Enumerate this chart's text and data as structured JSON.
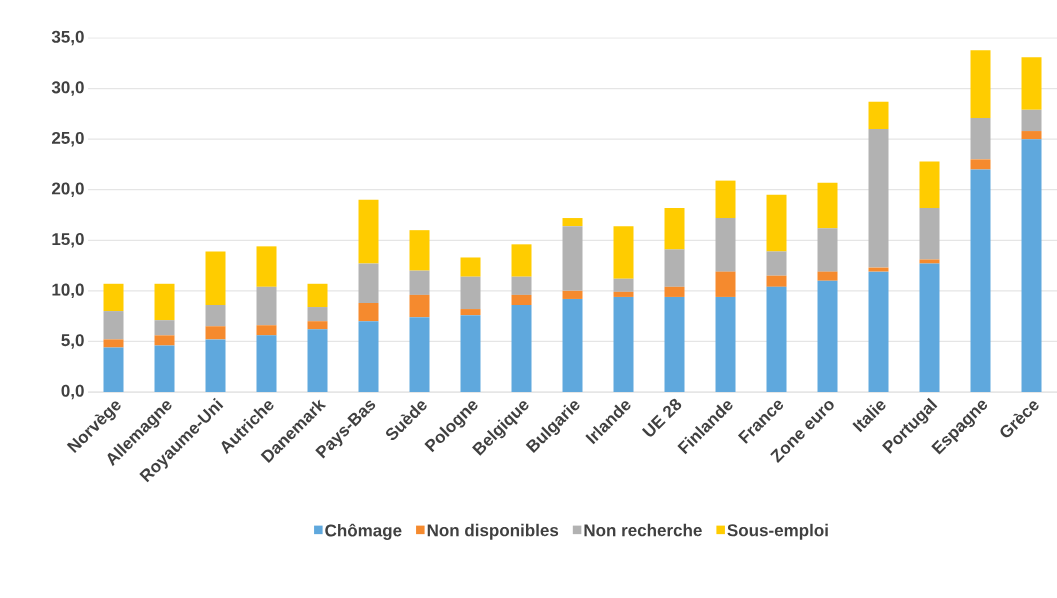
{
  "chart_data": {
    "type": "bar",
    "stacked": true,
    "categories": [
      "Norvège",
      "Allemagne",
      "Royaume-Uni",
      "Autriche",
      "Danemark",
      "Pays-Bas",
      "Suède",
      "Pologne",
      "Belgique",
      "Bulgarie",
      "Irlande",
      "UE 28",
      "Finlande",
      "France",
      "Zone euro",
      "Italie",
      "Portugal",
      "Espagne",
      "Grèce"
    ],
    "series": [
      {
        "name": "Chômage",
        "color": "#5fa8dd",
        "values": [
          4.4,
          4.6,
          5.2,
          5.6,
          6.2,
          7.0,
          7.4,
          7.6,
          8.6,
          9.2,
          9.4,
          9.4,
          9.4,
          10.4,
          11.0,
          11.9,
          12.7,
          22.0,
          25.0
        ]
      },
      {
        "name": "Non disponibles",
        "color": "#f58a2e",
        "values": [
          0.8,
          1.0,
          1.3,
          1.0,
          0.8,
          1.8,
          2.2,
          0.6,
          1.0,
          0.8,
          0.5,
          1.0,
          2.5,
          1.1,
          0.9,
          0.4,
          0.4,
          1.0,
          0.8
        ]
      },
      {
        "name": "Non recherche",
        "color": "#b2b2b2",
        "values": [
          2.8,
          1.5,
          2.1,
          3.8,
          1.4,
          3.9,
          2.4,
          3.2,
          1.8,
          6.4,
          1.3,
          3.7,
          5.3,
          2.4,
          4.3,
          13.7,
          5.1,
          4.1,
          2.1
        ]
      },
      {
        "name": "Sous-emploi",
        "color": "#ffcc00",
        "values": [
          2.7,
          3.6,
          5.3,
          4.0,
          2.3,
          6.3,
          4.0,
          1.9,
          3.2,
          0.8,
          5.2,
          4.1,
          3.7,
          5.6,
          4.5,
          2.7,
          4.6,
          6.7,
          5.2
        ]
      }
    ],
    "ylim": [
      0,
      35
    ],
    "yticks": [
      {
        "value": 0,
        "label": "0,0"
      },
      {
        "value": 5,
        "label": "5,0"
      },
      {
        "value": 10,
        "label": "10,0"
      },
      {
        "value": 15,
        "label": "15,0"
      },
      {
        "value": 20,
        "label": "20,0"
      },
      {
        "value": 25,
        "label": "25,0"
      },
      {
        "value": 30,
        "label": "30,0"
      },
      {
        "value": 35,
        "label": "35,0"
      }
    ],
    "grid": "y",
    "legend": "bottom"
  }
}
